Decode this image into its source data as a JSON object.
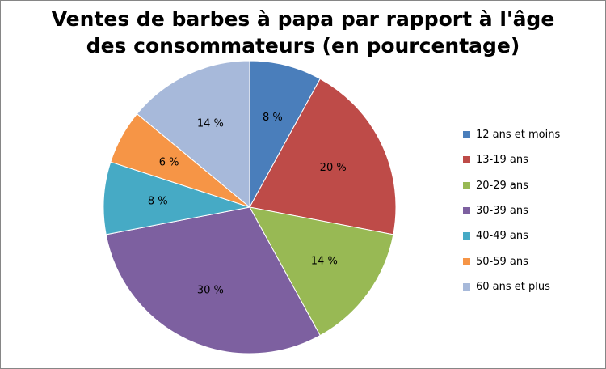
{
  "chart_data": {
    "type": "pie",
    "title": "Ventes de barbes à papa par rapport à l'âge des consommateurs (en pourcentage)",
    "title_lines": [
      "Ventes de barbes à papa par rapport à l'âge",
      "des consommateurs (en pourcentage)"
    ],
    "legend_position": "right",
    "start_angle_deg": 0,
    "direction": "clockwise",
    "slices": [
      {
        "label": "12 ans et moins",
        "value": 8,
        "data_label": "8 %",
        "color": "#4A7EBB"
      },
      {
        "label": "13-19 ans",
        "value": 20,
        "data_label": "20 %",
        "color": "#BE4B48"
      },
      {
        "label": "20-29 ans",
        "value": 14,
        "data_label": "14 %",
        "color": "#98B954"
      },
      {
        "label": "30-39 ans",
        "value": 30,
        "data_label": "30 %",
        "color": "#7D60A0"
      },
      {
        "label": "40-49 ans",
        "value": 8,
        "data_label": "8 %",
        "color": "#46AAC5"
      },
      {
        "label": "50-59 ans",
        "value": 6,
        "data_label": "6 %",
        "color": "#F69546"
      },
      {
        "label": "60 ans et plus",
        "value": 14,
        "data_label": "14 %",
        "color": "#A7B9DA"
      }
    ]
  }
}
